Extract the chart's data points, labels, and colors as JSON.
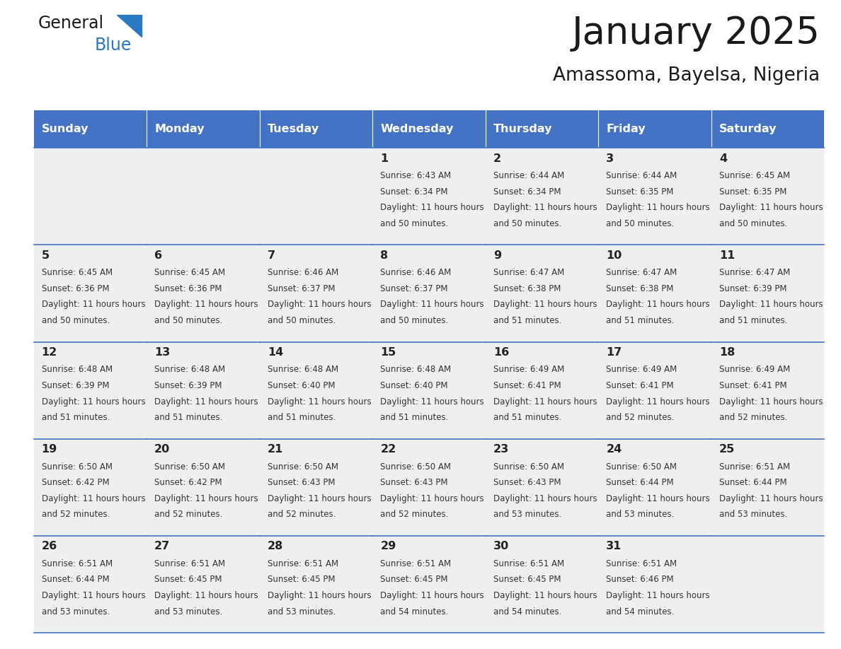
{
  "title": "January 2025",
  "subtitle": "Amassoma, Bayelsa, Nigeria",
  "days_of_week": [
    "Sunday",
    "Monday",
    "Tuesday",
    "Wednesday",
    "Thursday",
    "Friday",
    "Saturday"
  ],
  "header_bg": "#4472C4",
  "header_text_color": "#FFFFFF",
  "cell_bg": "#EFEFEF",
  "cell_border_color": "#4472C4",
  "day_number_color": "#222222",
  "cell_text_color": "#333333",
  "title_color": "#1a1a1a",
  "subtitle_color": "#1a1a1a",
  "logo_general_color": "#1a1a1a",
  "logo_blue_color": "#2979C2",
  "calendar": [
    [
      {
        "day": null,
        "sunrise": null,
        "sunset": null,
        "daylight": null
      },
      {
        "day": null,
        "sunrise": null,
        "sunset": null,
        "daylight": null
      },
      {
        "day": null,
        "sunrise": null,
        "sunset": null,
        "daylight": null
      },
      {
        "day": 1,
        "sunrise": "6:43 AM",
        "sunset": "6:34 PM",
        "daylight": "11 hours and 50 minutes."
      },
      {
        "day": 2,
        "sunrise": "6:44 AM",
        "sunset": "6:34 PM",
        "daylight": "11 hours and 50 minutes."
      },
      {
        "day": 3,
        "sunrise": "6:44 AM",
        "sunset": "6:35 PM",
        "daylight": "11 hours and 50 minutes."
      },
      {
        "day": 4,
        "sunrise": "6:45 AM",
        "sunset": "6:35 PM",
        "daylight": "11 hours and 50 minutes."
      }
    ],
    [
      {
        "day": 5,
        "sunrise": "6:45 AM",
        "sunset": "6:36 PM",
        "daylight": "11 hours and 50 minutes."
      },
      {
        "day": 6,
        "sunrise": "6:45 AM",
        "sunset": "6:36 PM",
        "daylight": "11 hours and 50 minutes."
      },
      {
        "day": 7,
        "sunrise": "6:46 AM",
        "sunset": "6:37 PM",
        "daylight": "11 hours and 50 minutes."
      },
      {
        "day": 8,
        "sunrise": "6:46 AM",
        "sunset": "6:37 PM",
        "daylight": "11 hours and 50 minutes."
      },
      {
        "day": 9,
        "sunrise": "6:47 AM",
        "sunset": "6:38 PM",
        "daylight": "11 hours and 51 minutes."
      },
      {
        "day": 10,
        "sunrise": "6:47 AM",
        "sunset": "6:38 PM",
        "daylight": "11 hours and 51 minutes."
      },
      {
        "day": 11,
        "sunrise": "6:47 AM",
        "sunset": "6:39 PM",
        "daylight": "11 hours and 51 minutes."
      }
    ],
    [
      {
        "day": 12,
        "sunrise": "6:48 AM",
        "sunset": "6:39 PM",
        "daylight": "11 hours and 51 minutes."
      },
      {
        "day": 13,
        "sunrise": "6:48 AM",
        "sunset": "6:39 PM",
        "daylight": "11 hours and 51 minutes."
      },
      {
        "day": 14,
        "sunrise": "6:48 AM",
        "sunset": "6:40 PM",
        "daylight": "11 hours and 51 minutes."
      },
      {
        "day": 15,
        "sunrise": "6:48 AM",
        "sunset": "6:40 PM",
        "daylight": "11 hours and 51 minutes."
      },
      {
        "day": 16,
        "sunrise": "6:49 AM",
        "sunset": "6:41 PM",
        "daylight": "11 hours and 51 minutes."
      },
      {
        "day": 17,
        "sunrise": "6:49 AM",
        "sunset": "6:41 PM",
        "daylight": "11 hours and 52 minutes."
      },
      {
        "day": 18,
        "sunrise": "6:49 AM",
        "sunset": "6:41 PM",
        "daylight": "11 hours and 52 minutes."
      }
    ],
    [
      {
        "day": 19,
        "sunrise": "6:50 AM",
        "sunset": "6:42 PM",
        "daylight": "11 hours and 52 minutes."
      },
      {
        "day": 20,
        "sunrise": "6:50 AM",
        "sunset": "6:42 PM",
        "daylight": "11 hours and 52 minutes."
      },
      {
        "day": 21,
        "sunrise": "6:50 AM",
        "sunset": "6:43 PM",
        "daylight": "11 hours and 52 minutes."
      },
      {
        "day": 22,
        "sunrise": "6:50 AM",
        "sunset": "6:43 PM",
        "daylight": "11 hours and 52 minutes."
      },
      {
        "day": 23,
        "sunrise": "6:50 AM",
        "sunset": "6:43 PM",
        "daylight": "11 hours and 53 minutes."
      },
      {
        "day": 24,
        "sunrise": "6:50 AM",
        "sunset": "6:44 PM",
        "daylight": "11 hours and 53 minutes."
      },
      {
        "day": 25,
        "sunrise": "6:51 AM",
        "sunset": "6:44 PM",
        "daylight": "11 hours and 53 minutes."
      }
    ],
    [
      {
        "day": 26,
        "sunrise": "6:51 AM",
        "sunset": "6:44 PM",
        "daylight": "11 hours and 53 minutes."
      },
      {
        "day": 27,
        "sunrise": "6:51 AM",
        "sunset": "6:45 PM",
        "daylight": "11 hours and 53 minutes."
      },
      {
        "day": 28,
        "sunrise": "6:51 AM",
        "sunset": "6:45 PM",
        "daylight": "11 hours and 53 minutes."
      },
      {
        "day": 29,
        "sunrise": "6:51 AM",
        "sunset": "6:45 PM",
        "daylight": "11 hours and 54 minutes."
      },
      {
        "day": 30,
        "sunrise": "6:51 AM",
        "sunset": "6:45 PM",
        "daylight": "11 hours and 54 minutes."
      },
      {
        "day": 31,
        "sunrise": "6:51 AM",
        "sunset": "6:46 PM",
        "daylight": "11 hours and 54 minutes."
      },
      {
        "day": null,
        "sunrise": null,
        "sunset": null,
        "daylight": null
      }
    ]
  ]
}
